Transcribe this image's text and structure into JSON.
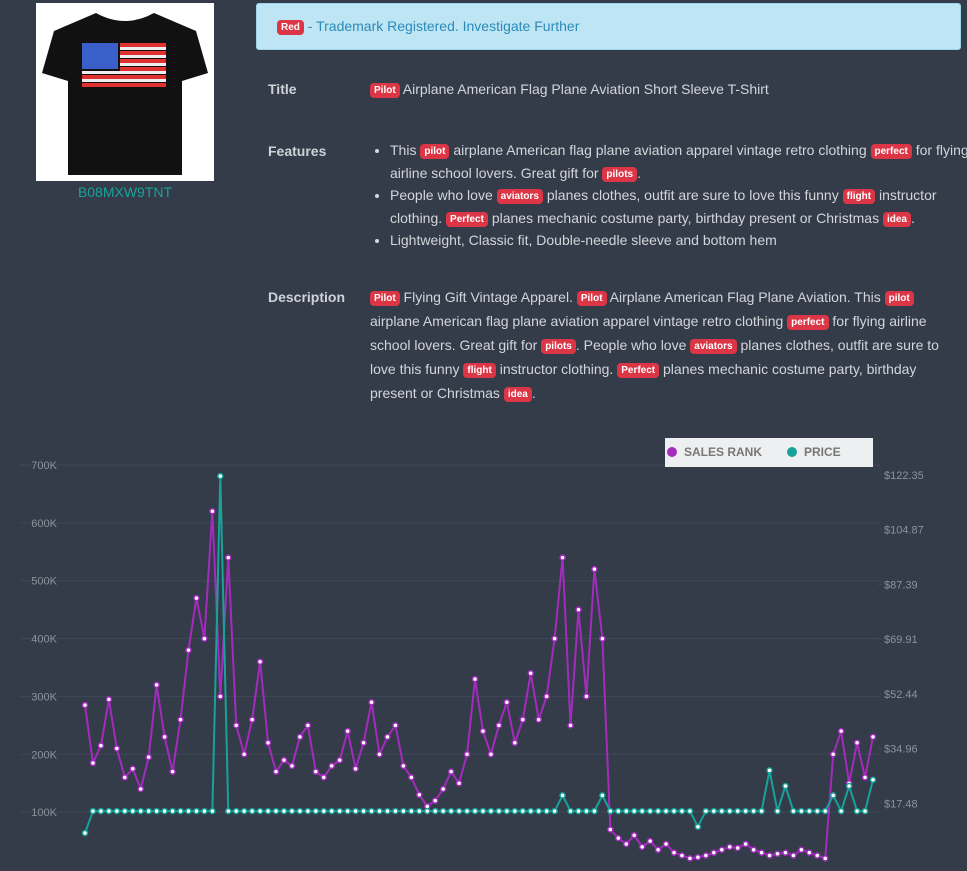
{
  "product": {
    "asin": "B08MXW9TNT"
  },
  "alert": {
    "pieces": [
      {
        "text": "Red",
        "tag": true
      },
      {
        "text": " - Trademark Registered. Investigate Further"
      }
    ]
  },
  "title": {
    "label": "Title",
    "pieces": [
      {
        "text": "Pilot",
        "tag": true
      },
      {
        "text": " Airplane American Flag Plane Aviation Short Sleeve T-Shirt"
      }
    ]
  },
  "features": {
    "label": "Features",
    "items": [
      [
        {
          "text": "This "
        },
        {
          "text": "pilot",
          "tag": true
        },
        {
          "text": " airplane American flag plane aviation apparel vintage retro clothing "
        },
        {
          "text": "perfect",
          "tag": true
        },
        {
          "text": " for flying airline school lovers. Great gift for "
        },
        {
          "text": "pilots",
          "tag": true
        },
        {
          "text": "."
        }
      ],
      [
        {
          "text": "People who love "
        },
        {
          "text": "aviators",
          "tag": true
        },
        {
          "text": " planes clothes, outfit are sure to love this funny "
        },
        {
          "text": "flight",
          "tag": true
        },
        {
          "text": " instructor clothing. "
        },
        {
          "text": "Perfect",
          "tag": true
        },
        {
          "text": " planes mechanic costume party, birthday present or Christmas "
        },
        {
          "text": "idea",
          "tag": true
        },
        {
          "text": "."
        }
      ],
      [
        {
          "text": "Lightweight, Classic fit, Double-needle sleeve and bottom hem"
        }
      ]
    ]
  },
  "description": {
    "label": "Description",
    "pieces": [
      {
        "text": "Pilot",
        "tag": true
      },
      {
        "text": " Flying Gift Vintage Apparel. "
      },
      {
        "text": "Pilot",
        "tag": true
      },
      {
        "text": " Airplane American Flag Plane Aviation. This "
      },
      {
        "text": "pilot",
        "tag": true
      },
      {
        "text": " airplane American flag plane aviation apparel vintage retro clothing "
      },
      {
        "text": "perfect",
        "tag": true
      },
      {
        "text": " for flying airline school lovers. Great gift for "
      },
      {
        "text": "pilots",
        "tag": true
      },
      {
        "text": ". People who love "
      },
      {
        "text": "aviators",
        "tag": true
      },
      {
        "text": " planes clothes, outfit are sure to love this funny "
      },
      {
        "text": "flight",
        "tag": true
      },
      {
        "text": " instructor clothing. "
      },
      {
        "text": "Perfect",
        "tag": true
      },
      {
        "text": " planes mechanic costume party, birthday present or Christmas "
      },
      {
        "text": "idea",
        "tag": true
      },
      {
        "text": "."
      }
    ]
  },
  "chart_data": {
    "type": "line",
    "ylim": [
      0,
      700000
    ],
    "yticks": [
      {
        "value": 100000,
        "label": "100K"
      },
      {
        "value": 200000,
        "label": "200K"
      },
      {
        "value": 300000,
        "label": "300K"
      },
      {
        "value": 400000,
        "label": "400K"
      },
      {
        "value": 500000,
        "label": "500K"
      },
      {
        "value": 600000,
        "label": "600K"
      },
      {
        "value": 700000,
        "label": "700K"
      }
    ],
    "y2lim": [
      0,
      122.35
    ],
    "y2ticks": [
      {
        "value": 17.48,
        "label": "$17.48"
      },
      {
        "value": 34.96,
        "label": "$34.96"
      },
      {
        "value": 52.44,
        "label": "$52.44"
      },
      {
        "value": 69.91,
        "label": "$69.91"
      },
      {
        "value": 87.39,
        "label": "$87.39"
      },
      {
        "value": 104.87,
        "label": "$104.87"
      },
      {
        "value": 122.35,
        "label": "$122.35"
      }
    ],
    "grid": true,
    "legend": "top-right",
    "series": [
      {
        "name": "SALES RANK",
        "color": "#a52bbf",
        "values": [
          285000,
          185000,
          215000,
          295000,
          210000,
          160000,
          175000,
          140000,
          195000,
          320000,
          230000,
          170000,
          260000,
          380000,
          470000,
          400000,
          620000,
          300000,
          540000,
          250000,
          200000,
          260000,
          360000,
          220000,
          170000,
          190000,
          180000,
          230000,
          250000,
          170000,
          160000,
          180000,
          190000,
          240000,
          175000,
          220000,
          290000,
          200000,
          230000,
          250000,
          180000,
          160000,
          130000,
          110000,
          120000,
          140000,
          170000,
          150000,
          200000,
          330000,
          240000,
          200000,
          250000,
          290000,
          220000,
          260000,
          340000,
          260000,
          300000,
          400000,
          540000,
          250000,
          450000,
          300000,
          520000,
          400000,
          70000,
          55000,
          45000,
          60000,
          40000,
          50000,
          35000,
          45000,
          30000,
          25000,
          20000,
          22000,
          25000,
          30000,
          35000,
          40000,
          38000,
          45000,
          35000,
          30000,
          25000,
          28000,
          30000,
          25000,
          35000,
          30000,
          25000,
          20000,
          200000,
          240000,
          150000,
          220000,
          160000,
          230000
        ]
      },
      {
        "name": "PRICE",
        "color": "#17a39a",
        "axis": "y2",
        "values": [
          7.99,
          14.99,
          14.99,
          14.99,
          14.99,
          14.99,
          14.99,
          14.99,
          14.99,
          14.99,
          14.99,
          14.99,
          14.99,
          14.99,
          14.99,
          14.99,
          14.99,
          121.99,
          14.99,
          14.99,
          14.99,
          14.99,
          14.99,
          14.99,
          14.99,
          14.99,
          14.99,
          14.99,
          14.99,
          14.99,
          14.99,
          14.99,
          14.99,
          14.99,
          14.99,
          14.99,
          14.99,
          14.99,
          14.99,
          14.99,
          14.99,
          14.99,
          14.99,
          14.99,
          14.99,
          14.99,
          14.99,
          14.99,
          14.99,
          14.99,
          14.99,
          14.99,
          14.99,
          14.99,
          14.99,
          14.99,
          14.99,
          14.99,
          14.99,
          14.99,
          19.99,
          14.99,
          14.99,
          14.99,
          14.99,
          19.99,
          14.99,
          14.99,
          14.99,
          14.99,
          14.99,
          14.99,
          14.99,
          14.99,
          14.99,
          14.99,
          14.99,
          9.99,
          14.99,
          14.99,
          14.99,
          14.99,
          14.99,
          14.99,
          14.99,
          14.99,
          27.99,
          14.99,
          22.99,
          14.99,
          14.99,
          14.99,
          14.99,
          14.99,
          19.99,
          14.99,
          22.99,
          14.99,
          14.99,
          24.99
        ]
      }
    ]
  }
}
